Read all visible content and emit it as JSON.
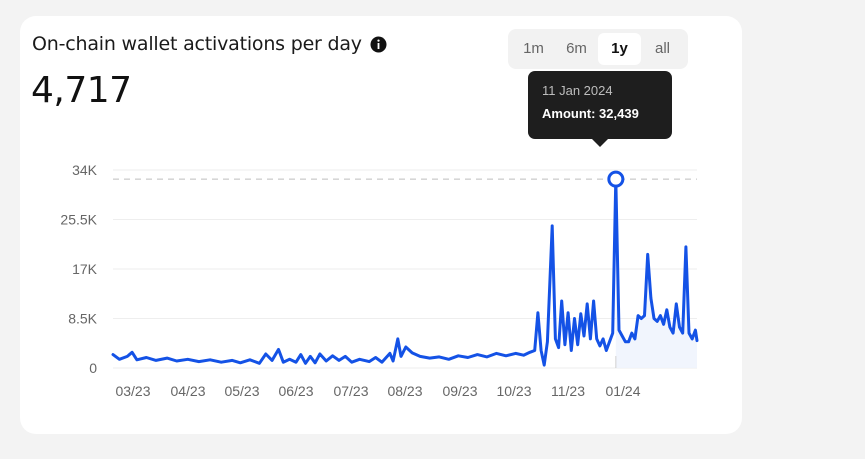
{
  "card": {
    "title": "On-chain wallet activations per day",
    "value": "4,717",
    "info_icon": "info-icon"
  },
  "range_tabs": [
    {
      "label": "1m",
      "active": false
    },
    {
      "label": "6m",
      "active": false
    },
    {
      "label": "1y",
      "active": true
    },
    {
      "label": "all",
      "active": false
    }
  ],
  "tooltip": {
    "date": "11 Jan 2024",
    "amount": "Amount: 32,439"
  },
  "colors": {
    "line": "#1452e6",
    "grid": "#eeeeee",
    "peak_line": "#bdbdbd",
    "background": "#ffffff"
  },
  "chart_data": {
    "type": "line",
    "title": "On-chain wallet activations per day",
    "xlabel": "",
    "ylabel": "",
    "ylim": [
      0,
      34000
    ],
    "y_ticks": [
      0,
      8500,
      17000,
      25500,
      34000
    ],
    "y_tick_labels": [
      "0",
      "8.5K",
      "17K",
      "25.5K",
      "34K"
    ],
    "x_tick_labels": [
      "03/23",
      "04/23",
      "05/23",
      "06/23",
      "07/23",
      "08/23",
      "09/23",
      "10/23",
      "11/23",
      "01/24"
    ],
    "grid": true,
    "highlight": {
      "date": "11 Jan 2024",
      "value": 32439
    },
    "series": [
      {
        "points": [
          [
            "2023-03-01",
            2300
          ],
          [
            "2023-03-05",
            1500
          ],
          [
            "2023-03-10",
            2000
          ],
          [
            "2023-03-13",
            2700
          ],
          [
            "2023-03-16",
            1400
          ],
          [
            "2023-03-22",
            1800
          ],
          [
            "2023-03-28",
            1300
          ],
          [
            "2023-04-04",
            1700
          ],
          [
            "2023-04-10",
            1200
          ],
          [
            "2023-04-17",
            1500
          ],
          [
            "2023-04-24",
            1100
          ],
          [
            "2023-05-01",
            1400
          ],
          [
            "2023-05-08",
            1000
          ],
          [
            "2023-05-15",
            1300
          ],
          [
            "2023-05-20",
            900
          ],
          [
            "2023-05-26",
            1400
          ],
          [
            "2023-06-01",
            800
          ],
          [
            "2023-06-05",
            2400
          ],
          [
            "2023-06-09",
            1300
          ],
          [
            "2023-06-13",
            3200
          ],
          [
            "2023-06-16",
            1000
          ],
          [
            "2023-06-20",
            1500
          ],
          [
            "2023-06-24",
            1000
          ],
          [
            "2023-06-27",
            2300
          ],
          [
            "2023-06-30",
            800
          ],
          [
            "2023-07-03",
            2000
          ],
          [
            "2023-07-06",
            900
          ],
          [
            "2023-07-09",
            2400
          ],
          [
            "2023-07-13",
            1200
          ],
          [
            "2023-07-17",
            2100
          ],
          [
            "2023-07-21",
            1300
          ],
          [
            "2023-07-25",
            2000
          ],
          [
            "2023-07-29",
            1000
          ],
          [
            "2023-08-03",
            1500
          ],
          [
            "2023-08-09",
            1100
          ],
          [
            "2023-08-13",
            1800
          ],
          [
            "2023-08-17",
            1000
          ],
          [
            "2023-08-22",
            2500
          ],
          [
            "2023-08-24",
            1200
          ],
          [
            "2023-08-27",
            5000
          ],
          [
            "2023-08-29",
            2000
          ],
          [
            "2023-09-01",
            3600
          ],
          [
            "2023-09-05",
            2600
          ],
          [
            "2023-09-10",
            2000
          ],
          [
            "2023-09-16",
            1700
          ],
          [
            "2023-09-22",
            1900
          ],
          [
            "2023-09-28",
            1500
          ],
          [
            "2023-10-04",
            2100
          ],
          [
            "2023-10-10",
            1800
          ],
          [
            "2023-10-16",
            2300
          ],
          [
            "2023-10-22",
            1900
          ],
          [
            "2023-10-28",
            2500
          ],
          [
            "2023-11-03",
            2100
          ],
          [
            "2023-11-09",
            2500
          ],
          [
            "2023-11-14",
            2200
          ],
          [
            "2023-11-18",
            2700
          ],
          [
            "2023-11-21",
            3000
          ],
          [
            "2023-11-23",
            9500
          ],
          [
            "2023-11-25",
            3000
          ],
          [
            "2023-11-27",
            500
          ],
          [
            "2023-11-29",
            4500
          ],
          [
            "2023-12-02",
            24400
          ],
          [
            "2023-12-04",
            5000
          ],
          [
            "2023-12-06",
            3500
          ],
          [
            "2023-12-08",
            11500
          ],
          [
            "2023-12-10",
            4000
          ],
          [
            "2023-12-12",
            9500
          ],
          [
            "2023-12-14",
            3000
          ],
          [
            "2023-12-16",
            8500
          ],
          [
            "2023-12-18",
            4000
          ],
          [
            "2023-12-20",
            9300
          ],
          [
            "2023-12-22",
            5500
          ],
          [
            "2023-12-24",
            11000
          ],
          [
            "2023-12-26",
            5000
          ],
          [
            "2023-12-28",
            11500
          ],
          [
            "2023-12-30",
            5000
          ],
          [
            "2024-01-01",
            3800
          ],
          [
            "2024-01-03",
            5000
          ],
          [
            "2024-01-05",
            3000
          ],
          [
            "2024-01-07",
            4500
          ],
          [
            "2024-01-09",
            6000
          ],
          [
            "2024-01-11",
            32439
          ],
          [
            "2024-01-13",
            6500
          ],
          [
            "2024-01-15",
            5500
          ],
          [
            "2024-01-17",
            4500
          ],
          [
            "2024-01-19",
            4500
          ],
          [
            "2024-01-21",
            6000
          ],
          [
            "2024-01-23",
            5000
          ],
          [
            "2024-01-25",
            9000
          ],
          [
            "2024-01-27",
            8500
          ],
          [
            "2024-01-29",
            9000
          ],
          [
            "2024-01-31",
            19500
          ],
          [
            "2024-02-02",
            12000
          ],
          [
            "2024-02-04",
            8500
          ],
          [
            "2024-02-06",
            8000
          ],
          [
            "2024-02-08",
            9000
          ],
          [
            "2024-02-10",
            7500
          ],
          [
            "2024-02-12",
            10000
          ],
          [
            "2024-02-14",
            7000
          ],
          [
            "2024-02-16",
            6000
          ],
          [
            "2024-02-18",
            11000
          ],
          [
            "2024-02-20",
            7000
          ],
          [
            "2024-02-22",
            6000
          ],
          [
            "2024-02-24",
            20800
          ],
          [
            "2024-02-26",
            6000
          ],
          [
            "2024-02-28",
            5000
          ],
          [
            "2024-03-01",
            6500
          ],
          [
            "2024-03-02",
            4700
          ]
        ]
      }
    ]
  }
}
